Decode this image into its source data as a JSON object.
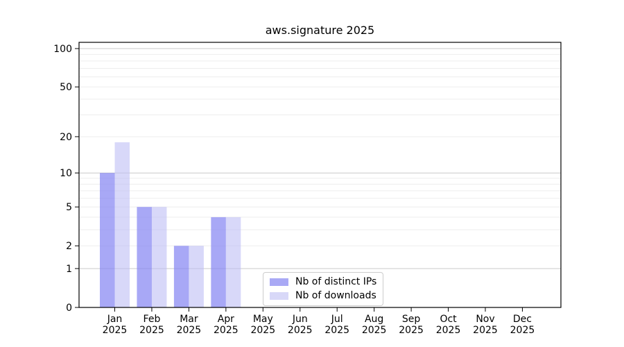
{
  "chart_data": {
    "type": "bar",
    "title": "aws.signature 2025",
    "categories": [
      "Jan",
      "Feb",
      "Mar",
      "Apr",
      "May",
      "Jun",
      "Jul",
      "Aug",
      "Sep",
      "Oct",
      "Nov",
      "Dec"
    ],
    "category_year": "2025",
    "series": [
      {
        "name": "Nb of distinct IPs",
        "color": "rgba(134,134,242,0.72)",
        "legend_color": "#a9a9f5",
        "values": [
          10,
          5,
          2,
          4,
          0,
          0,
          0,
          0,
          0,
          0,
          0,
          0
        ]
      },
      {
        "name": "Nb of downloads",
        "color": "rgba(190,190,245,0.6)",
        "legend_color": "#d8d8f8",
        "values": [
          18,
          5,
          2,
          4,
          0,
          0,
          0,
          0,
          0,
          0,
          0,
          0
        ]
      }
    ],
    "yscale": "log1p",
    "ylim": [
      0,
      100
    ],
    "y_tick_labels": [
      100,
      50,
      20,
      10,
      5,
      2,
      1,
      0
    ],
    "y_major_gridlines": [
      1,
      10,
      100
    ],
    "y_minor_gridlines": [
      2,
      3,
      4,
      5,
      6,
      7,
      8,
      9,
      20,
      30,
      40,
      50,
      60,
      70,
      80,
      90
    ],
    "grid": true,
    "legend_position": "lower center inside plot",
    "colors": {
      "axis": "#000000",
      "major_grid": "#c9c9c9",
      "minor_grid": "#ededed",
      "background": "#ffffff",
      "text": "#000000"
    }
  }
}
